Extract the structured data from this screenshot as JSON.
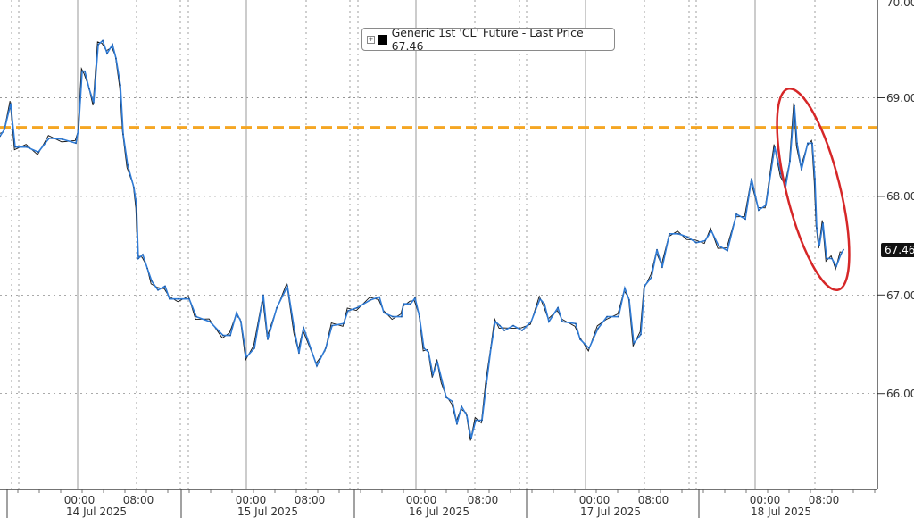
{
  "chart_data": {
    "type": "line",
    "title": "",
    "legend": {
      "label": "Generic 1st 'CL' Future - Last Price 67.46",
      "placement": "top-center"
    },
    "last_price_tag": "67.46",
    "y_ticks": [
      "70.00",
      "69.00",
      "68.00",
      "67.00",
      "66.00"
    ],
    "ylim": [
      65.2,
      70.0
    ],
    "x_time_labels": [
      "00:00",
      "08:00",
      "00:00",
      "08:00",
      "00:00",
      "08:00",
      "00:00",
      "08:00",
      "00:00",
      "08:00"
    ],
    "x_date_labels": [
      "14 Jul 2025",
      "15 Jul 2025",
      "16 Jul 2025",
      "17 Jul 2025",
      "18 Jul 2025"
    ],
    "grid": true,
    "reference_line": {
      "value": 68.7,
      "color": "#f5a623",
      "style": "dashed"
    },
    "annotation": {
      "shape": "ellipse",
      "color": "#d62728"
    },
    "series_color": "#2f7bd6",
    "series": [
      {
        "points": [
          [
            "2025-07-13T13:06",
            68.61
          ],
          [
            "2025-07-13T13:43",
            68.68
          ],
          [
            "2025-07-13T14:35",
            68.94
          ],
          [
            "2025-07-13T15:12",
            68.5
          ],
          [
            "2025-07-13T16:49",
            68.5
          ],
          [
            "2025-07-13T18:25",
            68.45
          ],
          [
            "2025-07-13T19:55",
            68.59
          ],
          [
            "2025-07-13T21:46",
            68.58
          ],
          [
            "2025-07-13T23:38",
            68.54
          ],
          [
            "2025-07-14T00:00",
            68.68
          ],
          [
            "2025-07-14T00:30",
            69.27
          ],
          [
            "2025-07-14T00:52",
            69.27
          ],
          [
            "2025-07-14T01:29",
            69.09
          ],
          [
            "2025-07-14T02:06",
            68.95
          ],
          [
            "2025-07-14T02:44",
            69.54
          ],
          [
            "2025-07-14T03:21",
            69.58
          ],
          [
            "2025-07-14T03:58",
            69.45
          ],
          [
            "2025-07-14T04:43",
            69.54
          ],
          [
            "2025-07-14T05:12",
            69.4
          ],
          [
            "2025-07-14T05:49",
            69.13
          ],
          [
            "2025-07-14T06:12",
            68.63
          ],
          [
            "2025-07-14T06:49",
            68.32
          ],
          [
            "2025-07-14T07:41",
            68.09
          ],
          [
            "2025-07-14T08:03",
            67.91
          ],
          [
            "2025-07-14T08:18",
            67.37
          ],
          [
            "2025-07-14T08:55",
            67.41
          ],
          [
            "2025-07-14T09:33",
            67.27
          ],
          [
            "2025-07-14T10:10",
            67.14
          ],
          [
            "2025-07-14T11:02",
            67.05
          ],
          [
            "2025-07-14T12:01",
            67.09
          ],
          [
            "2025-07-14T12:38",
            66.96
          ],
          [
            "2025-07-14T13:53",
            66.96
          ],
          [
            "2025-07-14T15:22",
            66.96
          ],
          [
            "2025-07-14T16:21",
            66.78
          ],
          [
            "2025-07-14T18:13",
            66.73
          ],
          [
            "2025-07-14T20:04",
            66.59
          ],
          [
            "2025-07-14T21:04",
            66.59
          ],
          [
            "2025-07-14T21:56",
            66.82
          ],
          [
            "2025-07-14T22:33",
            66.73
          ],
          [
            "2025-07-14T23:18",
            66.37
          ],
          [
            "2025-07-15T00:25",
            66.46
          ],
          [
            "2025-07-15T01:39",
            67.0
          ],
          [
            "2025-07-15T02:16",
            66.55
          ],
          [
            "2025-07-15T03:31",
            66.87
          ],
          [
            "2025-07-15T05:00",
            67.09
          ],
          [
            "2025-07-15T05:59",
            66.64
          ],
          [
            "2025-07-15T06:36",
            66.41
          ],
          [
            "2025-07-15T07:14",
            66.67
          ],
          [
            "2025-07-15T09:05",
            66.28
          ],
          [
            "2025-07-15T10:19",
            66.46
          ],
          [
            "2025-07-15T11:12",
            66.69
          ],
          [
            "2025-07-15T12:48",
            66.71
          ],
          [
            "2025-07-15T13:25",
            66.84
          ],
          [
            "2025-07-15T14:40",
            66.87
          ],
          [
            "2025-07-15T16:31",
            66.95
          ],
          [
            "2025-07-15T17:46",
            66.98
          ],
          [
            "2025-07-15T18:23",
            66.82
          ],
          [
            "2025-07-15T19:37",
            66.78
          ],
          [
            "2025-07-15T20:51",
            66.78
          ],
          [
            "2025-07-15T21:06",
            66.91
          ],
          [
            "2025-07-15T22:06",
            66.91
          ],
          [
            "2025-07-15T22:43",
            66.97
          ],
          [
            "2025-07-15T23:20",
            66.78
          ],
          [
            "2025-07-15T23:57",
            66.46
          ],
          [
            "2025-07-16T00:35",
            66.42
          ],
          [
            "2025-07-16T01:12",
            66.19
          ],
          [
            "2025-07-16T01:49",
            66.32
          ],
          [
            "2025-07-16T02:26",
            66.14
          ],
          [
            "2025-07-16T03:03",
            65.96
          ],
          [
            "2025-07-16T03:55",
            65.92
          ],
          [
            "2025-07-16T04:32",
            65.69
          ],
          [
            "2025-07-16T05:10",
            65.87
          ],
          [
            "2025-07-16T05:54",
            65.78
          ],
          [
            "2025-07-16T06:31",
            65.55
          ],
          [
            "2025-07-16T07:09",
            65.73
          ],
          [
            "2025-07-16T08:01",
            65.73
          ],
          [
            "2025-07-16T08:38",
            66.1
          ],
          [
            "2025-07-16T09:15",
            66.46
          ],
          [
            "2025-07-16T09:52",
            66.73
          ],
          [
            "2025-07-16T10:29",
            66.69
          ],
          [
            "2025-07-16T11:07",
            66.64
          ],
          [
            "2025-07-16T12:21",
            66.69
          ],
          [
            "2025-07-16T13:35",
            66.64
          ],
          [
            "2025-07-16T14:50",
            66.73
          ],
          [
            "2025-07-16T16:04",
            66.96
          ],
          [
            "2025-07-16T16:41",
            66.91
          ],
          [
            "2025-07-16T17:18",
            66.73
          ],
          [
            "2025-07-16T18:33",
            66.87
          ],
          [
            "2025-07-16T19:10",
            66.73
          ],
          [
            "2025-07-16T21:01",
            66.71
          ],
          [
            "2025-07-16T21:38",
            66.55
          ],
          [
            "2025-07-16T22:53",
            66.46
          ],
          [
            "2025-07-17T00:07",
            66.66
          ],
          [
            "2025-07-17T01:22",
            66.78
          ],
          [
            "2025-07-17T02:58",
            66.78
          ],
          [
            "2025-07-17T03:50",
            67.07
          ],
          [
            "2025-07-17T04:27",
            66.95
          ],
          [
            "2025-07-17T05:05",
            66.51
          ],
          [
            "2025-07-17T06:04",
            66.6
          ],
          [
            "2025-07-17T06:34",
            67.09
          ],
          [
            "2025-07-17T07:33",
            67.18
          ],
          [
            "2025-07-17T08:18",
            67.46
          ],
          [
            "2025-07-17T09:02",
            67.28
          ],
          [
            "2025-07-17T10:02",
            67.62
          ],
          [
            "2025-07-17T11:16",
            67.62
          ],
          [
            "2025-07-17T12:31",
            67.59
          ],
          [
            "2025-07-17T13:45",
            67.53
          ],
          [
            "2025-07-17T14:59",
            67.55
          ],
          [
            "2025-07-17T15:51",
            67.65
          ],
          [
            "2025-07-17T16:51",
            67.5
          ],
          [
            "2025-07-17T18:05",
            67.45
          ],
          [
            "2025-07-17T19:20",
            67.82
          ],
          [
            "2025-07-17T20:34",
            67.77
          ],
          [
            "2025-07-17T21:26",
            68.18
          ],
          [
            "2025-07-17T22:25",
            67.86
          ],
          [
            "2025-07-17T23:25",
            67.91
          ],
          [
            "2025-07-18T00:39",
            68.5
          ],
          [
            "2025-07-18T01:31",
            68.23
          ],
          [
            "2025-07-18T02:09",
            68.09
          ],
          [
            "2025-07-18T02:46",
            68.36
          ],
          [
            "2025-07-18T03:23",
            68.92
          ],
          [
            "2025-07-18T03:45",
            68.54
          ],
          [
            "2025-07-18T04:22",
            68.27
          ],
          [
            "2025-07-18T05:14",
            68.54
          ],
          [
            "2025-07-18T05:52",
            68.54
          ],
          [
            "2025-07-18T06:14",
            68.18
          ],
          [
            "2025-07-18T06:29",
            67.68
          ],
          [
            "2025-07-18T06:51",
            67.5
          ],
          [
            "2025-07-18T07:21",
            67.73
          ],
          [
            "2025-07-18T07:51",
            67.37
          ],
          [
            "2025-07-18T08:35",
            67.37
          ],
          [
            "2025-07-18T09:12",
            67.29
          ],
          [
            "2025-07-18T09:49",
            67.41
          ],
          [
            "2025-07-18T10:12",
            67.46
          ]
        ]
      }
    ]
  }
}
